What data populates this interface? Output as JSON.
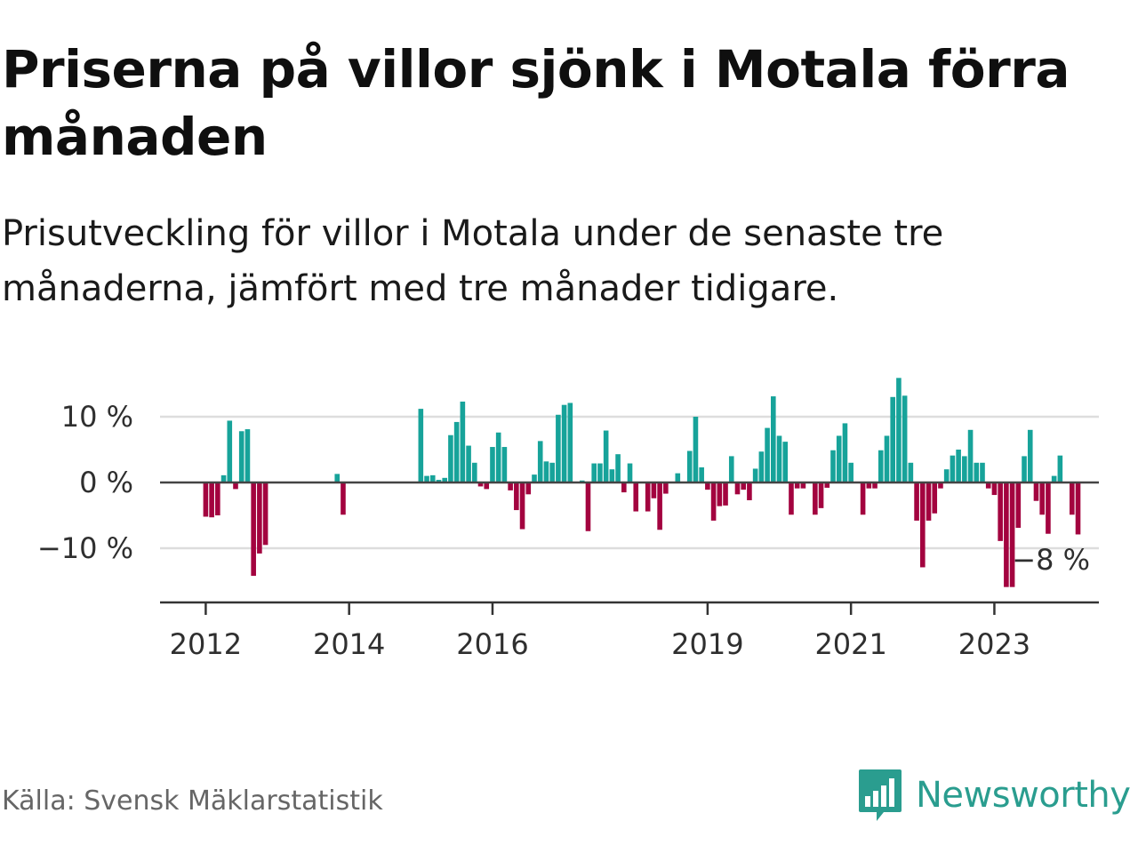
{
  "header": {
    "title": "Priserna på villor sjönk i Motala förra månaden",
    "subtitle": "Prisutveckling för villor i Motala under de senaste tre månaderna, jämfört med tre månader tidigare."
  },
  "footer": {
    "source": "Källa: Svensk Mäklarstatistik",
    "brand": "Newsworthy",
    "brand_icon": "bar-chart-speech-bubble-icon"
  },
  "colors": {
    "positive": "#17a39a",
    "negative": "#a3033f",
    "brand": "#2a9d8f",
    "grid": "#dddddd",
    "axis": "#333333"
  },
  "chart_data": {
    "type": "bar",
    "x_unit": "month",
    "x_range": [
      "2011-01",
      "2024-12"
    ],
    "ylim": [
      -18,
      17
    ],
    "y_ticks": [
      10,
      0,
      -10
    ],
    "y_tick_labels": [
      "10 %",
      "0 %",
      "−10 %"
    ],
    "x_ticks": [
      "2012-01",
      "2014-01",
      "2016-01",
      "2019-01",
      "2021-01",
      "2023-01"
    ],
    "x_tick_labels": [
      "2012",
      "2014",
      "2016",
      "2019",
      "2021",
      "2023"
    ],
    "last_value_label": "−8 %",
    "grid": true,
    "series": [
      {
        "points": [
          [
            "2012-01",
            -5.2
          ],
          [
            "2012-02",
            -5.3
          ],
          [
            "2012-03",
            -5.0
          ],
          [
            "2012-04",
            1.1
          ],
          [
            "2012-05",
            9.4
          ],
          [
            "2012-06",
            -1.0
          ],
          [
            "2012-07",
            7.8
          ],
          [
            "2012-08",
            8.1
          ],
          [
            "2012-09",
            -14.2
          ],
          [
            "2012-10",
            -10.8
          ],
          [
            "2012-11",
            -9.5
          ],
          [
            "2013-11",
            1.3
          ],
          [
            "2013-12",
            -4.9
          ],
          [
            "2015-01",
            11.2
          ],
          [
            "2015-02",
            1.0
          ],
          [
            "2015-03",
            1.1
          ],
          [
            "2015-04",
            0.4
          ],
          [
            "2015-05",
            0.7
          ],
          [
            "2015-06",
            7.2
          ],
          [
            "2015-07",
            9.2
          ],
          [
            "2015-08",
            12.3
          ],
          [
            "2015-09",
            5.6
          ],
          [
            "2015-10",
            3.0
          ],
          [
            "2015-11",
            -0.6
          ],
          [
            "2015-12",
            -1.0
          ],
          [
            "2016-01",
            5.4
          ],
          [
            "2016-02",
            7.6
          ],
          [
            "2016-03",
            5.4
          ],
          [
            "2016-04",
            -1.2
          ],
          [
            "2016-05",
            -4.2
          ],
          [
            "2016-06",
            -7.1
          ],
          [
            "2016-07",
            -1.8
          ],
          [
            "2016-08",
            1.2
          ],
          [
            "2016-09",
            6.3
          ],
          [
            "2016-10",
            3.2
          ],
          [
            "2016-11",
            3.0
          ],
          [
            "2016-12",
            10.3
          ],
          [
            "2017-01",
            11.8
          ],
          [
            "2017-02",
            12.1
          ],
          [
            "2017-04",
            0.3
          ],
          [
            "2017-05",
            -7.4
          ],
          [
            "2017-06",
            2.9
          ],
          [
            "2017-07",
            2.9
          ],
          [
            "2017-08",
            7.9
          ],
          [
            "2017-09",
            2.0
          ],
          [
            "2017-10",
            4.3
          ],
          [
            "2017-11",
            -1.5
          ],
          [
            "2017-12",
            2.9
          ],
          [
            "2018-01",
            -4.4
          ],
          [
            "2018-03",
            -4.4
          ],
          [
            "2018-04",
            -2.4
          ],
          [
            "2018-05",
            -7.2
          ],
          [
            "2018-06",
            -1.7
          ],
          [
            "2018-08",
            1.4
          ],
          [
            "2018-10",
            4.8
          ],
          [
            "2018-11",
            10.0
          ],
          [
            "2018-12",
            2.3
          ],
          [
            "2019-01",
            -1.1
          ],
          [
            "2019-02",
            -5.8
          ],
          [
            "2019-03",
            -3.6
          ],
          [
            "2019-04",
            -3.5
          ],
          [
            "2019-05",
            4.0
          ],
          [
            "2019-06",
            -1.8
          ],
          [
            "2019-07",
            -1.1
          ],
          [
            "2019-08",
            -2.7
          ],
          [
            "2019-09",
            2.1
          ],
          [
            "2019-10",
            4.7
          ],
          [
            "2019-11",
            8.3
          ],
          [
            "2019-12",
            13.1
          ],
          [
            "2020-01",
            7.1
          ],
          [
            "2020-02",
            6.2
          ],
          [
            "2020-03",
            -4.9
          ],
          [
            "2020-04",
            -0.9
          ],
          [
            "2020-05",
            -0.9
          ],
          [
            "2020-07",
            -4.9
          ],
          [
            "2020-08",
            -3.9
          ],
          [
            "2020-09",
            -0.8
          ],
          [
            "2020-10",
            4.9
          ],
          [
            "2020-11",
            7.1
          ],
          [
            "2020-12",
            9.0
          ],
          [
            "2021-01",
            3.0
          ],
          [
            "2021-03",
            -4.9
          ],
          [
            "2021-04",
            -0.9
          ],
          [
            "2021-05",
            -0.9
          ],
          [
            "2021-06",
            4.9
          ],
          [
            "2021-07",
            7.1
          ],
          [
            "2021-08",
            13.0
          ],
          [
            "2021-09",
            15.9
          ],
          [
            "2021-10",
            13.2
          ],
          [
            "2021-11",
            3.0
          ],
          [
            "2021-12",
            -5.8
          ],
          [
            "2022-01",
            -12.9
          ],
          [
            "2022-02",
            -5.8
          ],
          [
            "2022-03",
            -4.7
          ],
          [
            "2022-04",
            -0.9
          ],
          [
            "2022-05",
            2.0
          ],
          [
            "2022-06",
            4.1
          ],
          [
            "2022-07",
            5.0
          ],
          [
            "2022-08",
            4.0
          ],
          [
            "2022-09",
            8.0
          ],
          [
            "2022-10",
            3.0
          ],
          [
            "2022-11",
            3.0
          ],
          [
            "2022-12",
            -0.9
          ],
          [
            "2023-01",
            -1.9
          ],
          [
            "2023-02",
            -8.9
          ],
          [
            "2023-03",
            -15.9
          ],
          [
            "2023-04",
            -15.9
          ],
          [
            "2023-05",
            -6.9
          ],
          [
            "2023-06",
            4.0
          ],
          [
            "2023-07",
            8.0
          ],
          [
            "2023-08",
            -2.8
          ],
          [
            "2023-09",
            -4.9
          ],
          [
            "2023-10",
            -7.8
          ],
          [
            "2023-11",
            1.0
          ],
          [
            "2023-12",
            4.1
          ],
          [
            "2024-02",
            -4.9
          ],
          [
            "2024-03",
            -7.9
          ]
        ]
      }
    ]
  }
}
